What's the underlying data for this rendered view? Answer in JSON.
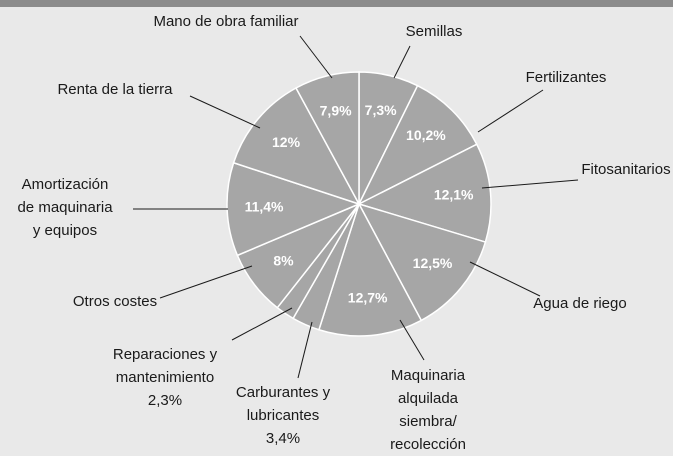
{
  "chart_data": {
    "type": "pie",
    "categories": [
      "Semillas",
      "Fertilizantes",
      "Fitosanitarios",
      "Agua de riego",
      "Maquinaria\nalquilada\nsiembra/\nrecolección",
      "Carburantes y\nlubricantes",
      "Reparaciones y\nmantenimiento",
      "Otros costes",
      "Amortización\nde maquinaria\ny equipos",
      "Renta de la tierra",
      "Mano de obra familiar"
    ],
    "values": [
      7.3,
      10.2,
      12.1,
      12.5,
      12.7,
      3.4,
      2.3,
      8,
      11.4,
      12,
      7.9
    ],
    "value_labels": [
      "7,3%",
      "10,2%",
      "12,1%",
      "12,5%",
      "12,7%",
      "3,4%",
      "2,3%",
      "8%",
      "11,4%",
      "12%",
      "7,9%"
    ],
    "color": "#a6a6a6"
  }
}
